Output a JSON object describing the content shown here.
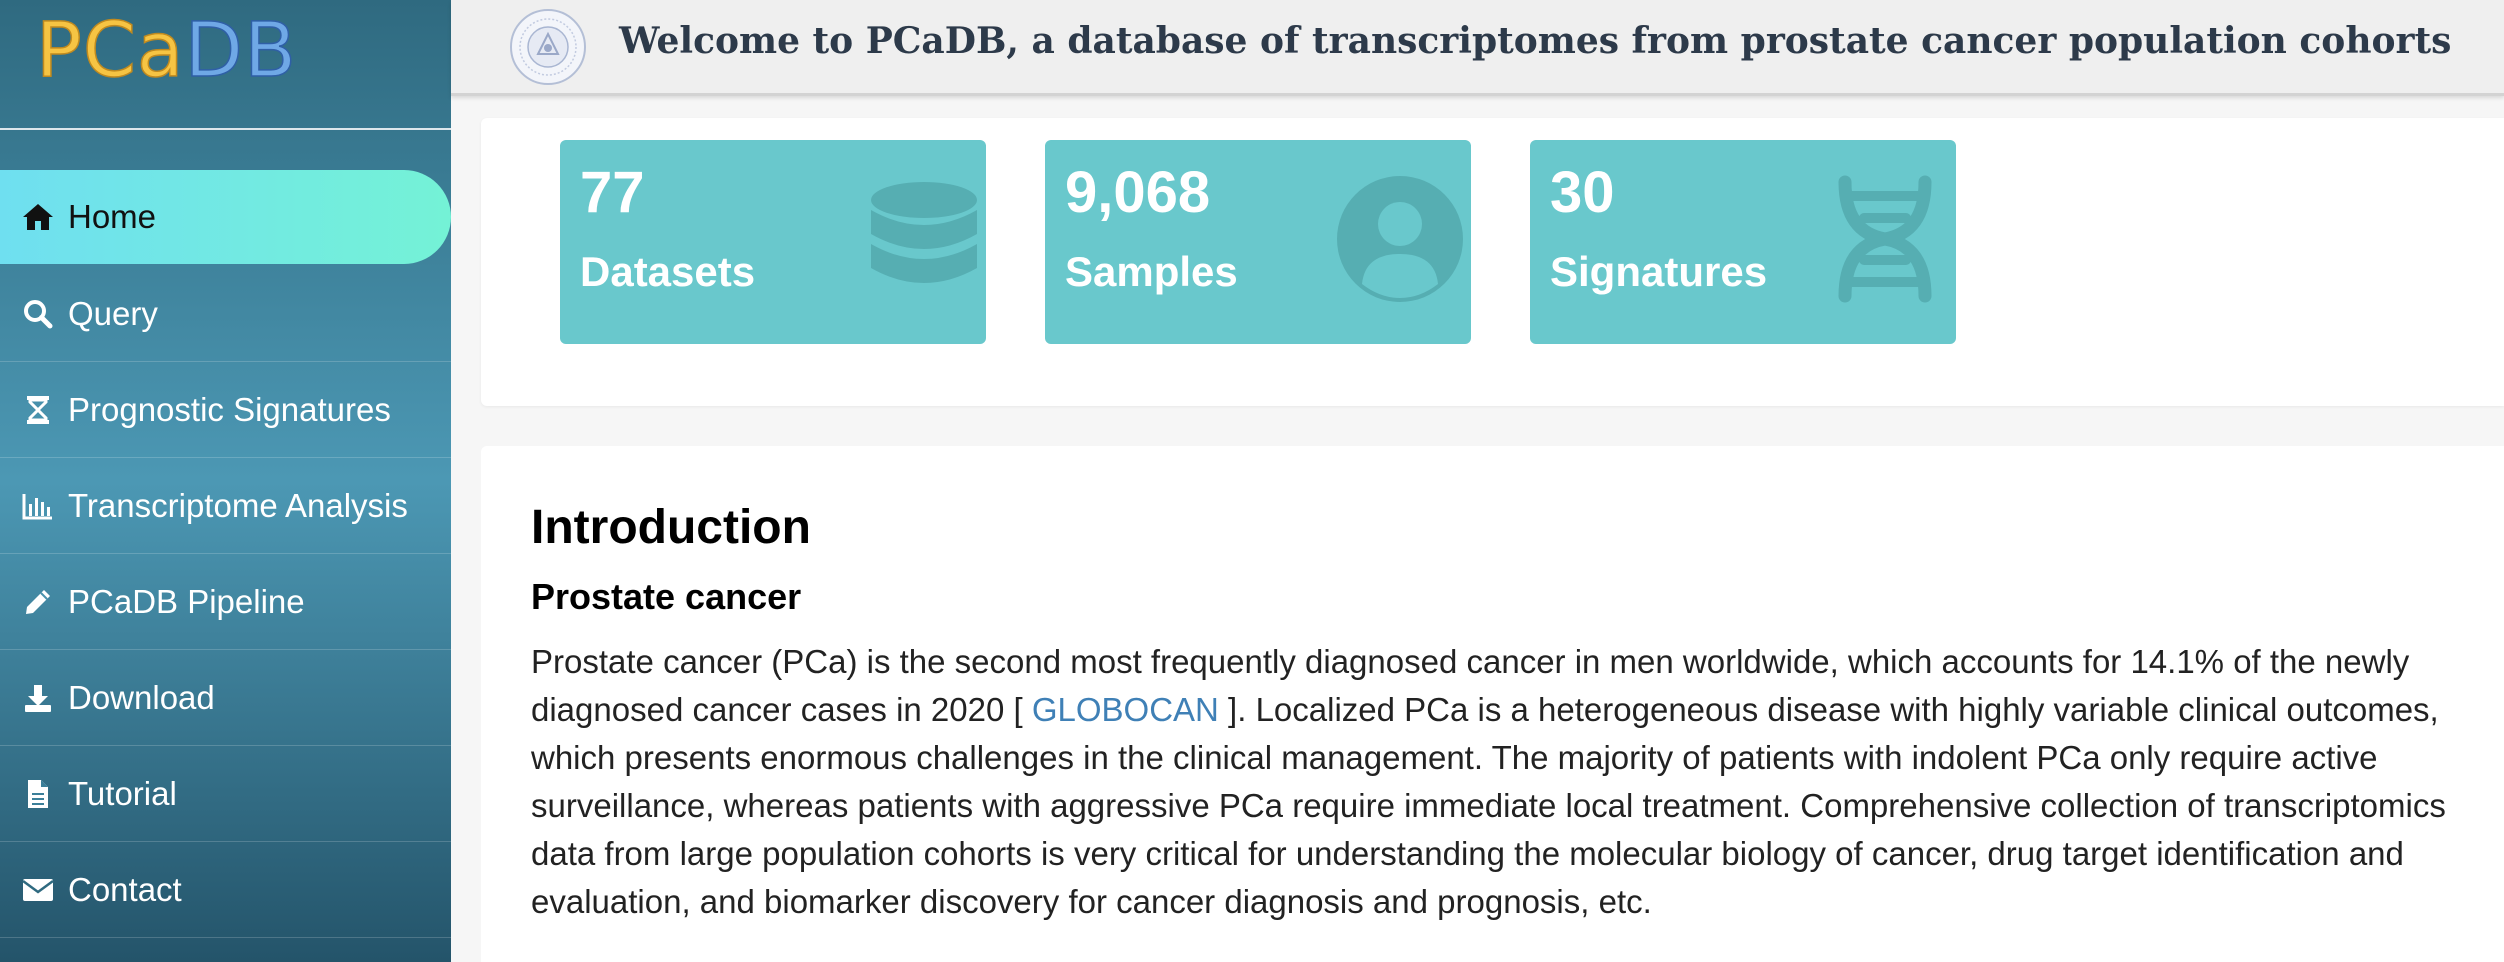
{
  "brand": {
    "logo_part1": "PCa",
    "logo_part2": "DB",
    "colors": {
      "logo_pca": "#f6c443",
      "logo_db": "#6fa8e6"
    }
  },
  "header": {
    "title": "Welcome to PCaDB, a database of transcriptomes from prostate cancer population cohorts",
    "seal_icon": "university-seal-icon"
  },
  "sidebar": {
    "items": [
      {
        "label": "Home",
        "icon": "home-icon",
        "active": true
      },
      {
        "label": "Query",
        "icon": "search-icon",
        "active": false
      },
      {
        "label": "Prognostic Signatures",
        "icon": "hourglass-icon",
        "active": false
      },
      {
        "label": "Transcriptome Analysis",
        "icon": "bar-chart-icon",
        "active": false
      },
      {
        "label": "PCaDB Pipeline",
        "icon": "pencil-icon",
        "active": false
      },
      {
        "label": "Download",
        "icon": "download-icon",
        "active": false
      },
      {
        "label": "Tutorial",
        "icon": "document-icon",
        "active": false
      },
      {
        "label": "Contact",
        "icon": "envelope-icon",
        "active": false
      }
    ]
  },
  "stats": [
    {
      "value": "77",
      "label": "Datasets",
      "icon": "database-icon"
    },
    {
      "value": "9,068",
      "label": "Samples",
      "icon": "user-icon"
    },
    {
      "value": "30",
      "label": "Signatures",
      "icon": "dna-icon"
    }
  ],
  "intro": {
    "title": "Introduction",
    "subtitle": "Prostate cancer",
    "paragraph_before": "Prostate cancer (PCa) is the second most frequently diagnosed cancer in men worldwide, which accounts for 14.1% of the newly diagnosed cancer cases in 2020 [ ",
    "link_text": "GLOBOCAN",
    "paragraph_after": " ]. Localized PCa is a heterogeneous disease with highly variable clinical outcomes, which presents enormous challenges in the clinical management. The majority of patients with indolent PCa only require active surveillance, whereas patients with aggressive PCa require immediate local treatment. Comprehensive collection of transcriptomics data from large population cohorts is very critical for understanding the molecular biology of cancer, drug target identification and evaluation, and biomarker discovery for cancer diagnosis and prognosis, etc."
  },
  "colors": {
    "card": "#69c8cc",
    "active_nav": "#74f2d6",
    "link": "#3f80b6"
  }
}
